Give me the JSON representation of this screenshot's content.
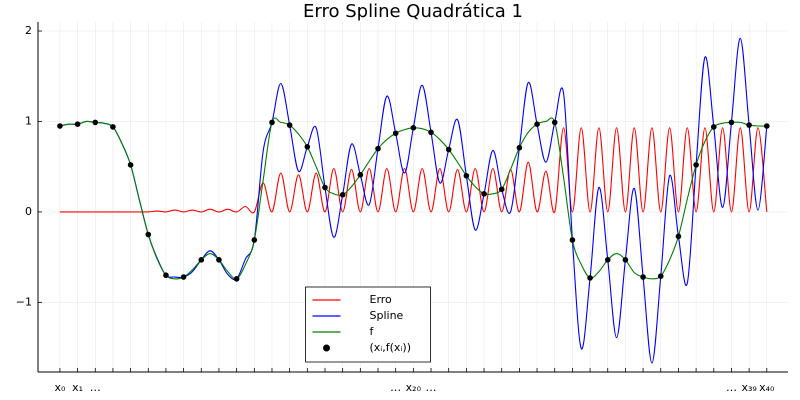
{
  "chart_data": {
    "type": "line",
    "title": "Erro Spline Quadrática 1",
    "x": [
      0,
      0.5,
      1,
      1.5,
      2,
      2.5,
      3,
      3.5,
      4,
      4.5,
      5,
      5.5,
      6,
      6.5,
      7,
      7.5,
      8,
      8.5,
      9,
      9.5,
      10,
      10.5,
      11,
      11.5,
      12,
      12.5,
      13,
      13.5,
      14,
      14.5,
      15,
      15.5,
      16,
      16.5,
      17,
      17.5,
      18,
      18.5,
      19,
      19.5,
      20,
      20.5,
      21,
      21.5,
      22,
      22.5,
      23,
      23.5,
      24,
      24.5,
      25,
      25.5,
      26,
      26.5,
      27,
      27.5,
      28,
      28.5,
      29,
      29.5,
      30,
      30.5,
      31,
      31.5,
      32,
      32.5,
      33,
      33.5,
      34,
      34.5,
      35,
      35.5,
      36,
      36.5,
      37,
      37.5,
      38,
      38.5,
      39,
      39.5,
      40
    ],
    "series": [
      {
        "name": "Erro",
        "color": "#ff0000",
        "values": [
          0,
          0,
          0,
          0,
          0,
          0,
          0,
          0,
          0,
          0,
          0,
          0.01,
          0,
          0.02,
          0,
          0.02,
          0,
          0.03,
          0,
          0.03,
          0,
          0.06,
          0,
          0.32,
          0,
          0.43,
          0,
          0.41,
          0,
          0.43,
          0,
          0.48,
          0,
          0.47,
          0,
          0.48,
          0,
          0.48,
          0,
          0.48,
          0,
          0.48,
          0,
          0.48,
          0,
          0.47,
          0,
          0.48,
          0,
          0.48,
          0,
          0.47,
          0,
          0.55,
          0,
          0.45,
          0,
          0.93,
          0,
          0.93,
          0,
          0.93,
          0,
          0.93,
          0,
          0.93,
          0,
          0.93,
          0,
          0.93,
          0,
          0.93,
          0,
          0.93,
          0,
          0.93,
          0,
          0.93,
          0,
          0.93,
          0
        ]
      },
      {
        "name": "Spline",
        "color": "#0000ff",
        "values": [
          0.95,
          0.97,
          0.97,
          1.0,
          0.99,
          0.98,
          0.94,
          0.76,
          0.52,
          0.13,
          -0.25,
          -0.51,
          -0.7,
          -0.72,
          -0.72,
          -0.66,
          -0.53,
          -0.43,
          -0.53,
          -0.69,
          -0.74,
          -0.52,
          -0.31,
          0.67,
          0.99,
          1.42,
          0.96,
          0.45,
          0.72,
          0.93,
          0.27,
          -0.28,
          0.19,
          0.75,
          0.41,
          0.08,
          0.7,
          1.28,
          0.87,
          0.43,
          0.93,
          1.4,
          0.88,
          0.32,
          0.69,
          1.02,
          0.4,
          -0.2,
          0.2,
          0.68,
          0.25,
          0.0,
          0.71,
          1.43,
          0.97,
          0.55,
          0.99,
          1.31,
          -0.31,
          -1.51,
          -0.73,
          0.27,
          -0.53,
          -1.39,
          -0.53,
          0.26,
          -0.72,
          -1.67,
          -0.71,
          0.4,
          -0.27,
          -0.79,
          0.52,
          1.71,
          0.94,
          0.05,
          0.99,
          1.92,
          0.96,
          0.02,
          0.95
        ]
      },
      {
        "name": "f",
        "color": "#008000",
        "values": [
          0.95,
          0.97,
          0.97,
          1.0,
          0.99,
          0.98,
          0.94,
          0.76,
          0.52,
          0.13,
          -0.25,
          -0.52,
          -0.7,
          -0.74,
          -0.72,
          -0.64,
          -0.53,
          -0.46,
          -0.53,
          -0.66,
          -0.74,
          -0.58,
          -0.31,
          0.35,
          0.99,
          0.99,
          0.96,
          0.86,
          0.72,
          0.5,
          0.27,
          0.2,
          0.19,
          0.28,
          0.41,
          0.56,
          0.7,
          0.8,
          0.87,
          0.91,
          0.93,
          0.92,
          0.88,
          0.8,
          0.69,
          0.55,
          0.4,
          0.28,
          0.2,
          0.2,
          0.25,
          0.47,
          0.71,
          0.88,
          0.97,
          1.0,
          0.99,
          0.38,
          -0.31,
          -0.58,
          -0.73,
          -0.66,
          -0.53,
          -0.46,
          -0.53,
          -0.67,
          -0.72,
          -0.74,
          -0.71,
          -0.53,
          -0.27,
          0.14,
          0.52,
          0.78,
          0.94,
          0.98,
          0.99,
          0.99,
          0.96,
          0.95,
          0.95
        ]
      },
      {
        "name": "(xᵢ,f(xᵢ))",
        "type": "scatter",
        "color": "#000000",
        "x": [
          0,
          1,
          2,
          3,
          4,
          5,
          6,
          7,
          8,
          9,
          10,
          11,
          12,
          13,
          14,
          15,
          16,
          17,
          18,
          19,
          20,
          21,
          22,
          23,
          24,
          25,
          26,
          27,
          28,
          29,
          30,
          31,
          32,
          33,
          34,
          35,
          36,
          37,
          38,
          39,
          40
        ],
        "values": [
          0.95,
          0.97,
          0.99,
          0.94,
          0.52,
          -0.25,
          -0.7,
          -0.72,
          -0.53,
          -0.53,
          -0.74,
          -0.31,
          0.99,
          0.96,
          0.72,
          0.27,
          0.19,
          0.41,
          0.7,
          0.87,
          0.93,
          0.88,
          0.69,
          0.4,
          0.2,
          0.25,
          0.71,
          0.97,
          0.99,
          -0.31,
          -0.73,
          -0.53,
          -0.53,
          -0.72,
          -0.71,
          -0.27,
          0.52,
          0.94,
          0.99,
          0.96,
          0.95
        ]
      }
    ],
    "xlim": [
      -1.24,
      41.2
    ],
    "ylim": [
      -1.77,
      2.1
    ],
    "xticks": [
      {
        "value": 0,
        "label": "x₀"
      },
      {
        "value": 1,
        "label": "x₁"
      },
      {
        "value": 2,
        "label": "…"
      },
      {
        "value": 3,
        "label": null
      },
      {
        "value": 4,
        "label": null
      },
      {
        "value": 5,
        "label": null
      },
      {
        "value": 6,
        "label": null
      },
      {
        "value": 7,
        "label": null
      },
      {
        "value": 8,
        "label": null
      },
      {
        "value": 9,
        "label": null
      },
      {
        "value": 10,
        "label": null
      },
      {
        "value": 11,
        "label": null
      },
      {
        "value": 12,
        "label": null
      },
      {
        "value": 13,
        "label": null
      },
      {
        "value": 14,
        "label": null
      },
      {
        "value": 15,
        "label": null
      },
      {
        "value": 16,
        "label": null
      },
      {
        "value": 17,
        "label": null
      },
      {
        "value": 18,
        "label": null
      },
      {
        "value": 19,
        "label": "…"
      },
      {
        "value": 20,
        "label": "x₂₀"
      },
      {
        "value": 21,
        "label": "…"
      },
      {
        "value": 22,
        "label": null
      },
      {
        "value": 23,
        "label": null
      },
      {
        "value": 24,
        "label": null
      },
      {
        "value": 25,
        "label": null
      },
      {
        "value": 26,
        "label": null
      },
      {
        "value": 27,
        "label": null
      },
      {
        "value": 28,
        "label": null
      },
      {
        "value": 29,
        "label": null
      },
      {
        "value": 30,
        "label": null
      },
      {
        "value": 31,
        "label": null
      },
      {
        "value": 32,
        "label": null
      },
      {
        "value": 33,
        "label": null
      },
      {
        "value": 34,
        "label": null
      },
      {
        "value": 35,
        "label": null
      },
      {
        "value": 36,
        "label": null
      },
      {
        "value": 37,
        "label": null
      },
      {
        "value": 38,
        "label": "…"
      },
      {
        "value": 39,
        "label": "x₃₉"
      },
      {
        "value": 40,
        "label": "x₄₀"
      }
    ],
    "yticks": [
      {
        "value": -1,
        "label": "−1"
      },
      0,
      1,
      2
    ],
    "grid": true,
    "legend": "lower center"
  }
}
